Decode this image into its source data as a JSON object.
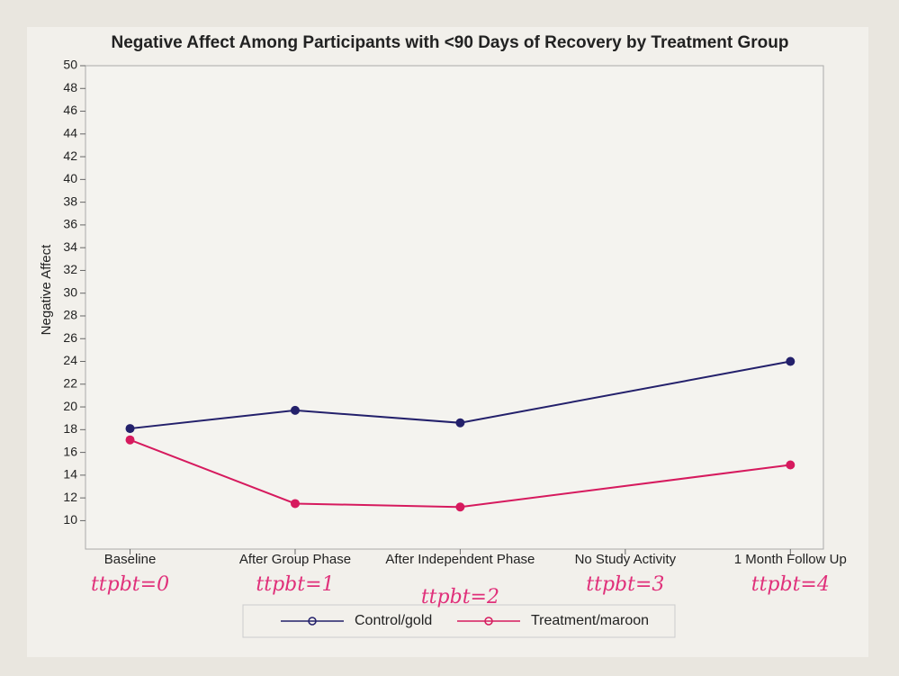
{
  "chart_data": {
    "type": "line",
    "title": "Negative Affect Among Participants with <90 Days of Recovery by Treatment Group",
    "y_label": "Negative Affect",
    "x": [
      0,
      1,
      2,
      4
    ],
    "xlim": [
      -0.27,
      4.2
    ],
    "xticks": [
      {
        "value": 0,
        "label": "Baseline"
      },
      {
        "value": 1,
        "label": "After Group Phase"
      },
      {
        "value": 2,
        "label": "After Independent Phase"
      },
      {
        "value": 3,
        "label": "No Study Activity"
      },
      {
        "value": 4,
        "label": "1 Month Follow Up"
      }
    ],
    "ylim": [
      7.5,
      50
    ],
    "yticks": [
      10,
      12,
      14,
      16,
      18,
      20,
      22,
      24,
      26,
      28,
      30,
      32,
      34,
      36,
      38,
      40,
      42,
      44,
      46,
      48,
      50
    ],
    "series": [
      {
        "name": "Control/gold",
        "color": "#23206b",
        "values": [
          18.1,
          19.7,
          18.6,
          24.0
        ]
      },
      {
        "name": "Treatment/maroon",
        "color": "#d61a5e",
        "values": [
          17.1,
          11.5,
          11.2,
          14.9
        ]
      }
    ],
    "annotations": [
      "ttpbt=0",
      "ttpbt=1",
      "ttpbt=2",
      "ttpbt=3",
      "ttpbt=4"
    ],
    "legend": "bottom"
  }
}
